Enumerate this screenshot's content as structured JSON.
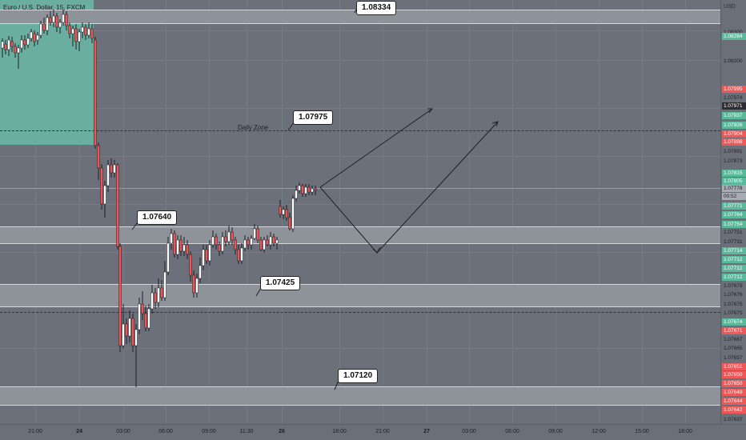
{
  "symbol": {
    "title": "Euro / U.S. Dollar, 15, FXCM"
  },
  "price_axis": {
    "currency": "USD",
    "labels": [
      {
        "text": "1.08300",
        "style": "plain"
      },
      {
        "text": "1.08284",
        "style": "green"
      },
      {
        "text": "1.08200",
        "style": "plain"
      },
      {
        "text": "1.07995",
        "style": "red"
      },
      {
        "text": "1.07974",
        "style": "plain"
      },
      {
        "text": "1.07971",
        "style": "dark"
      },
      {
        "text": "1.07937",
        "style": "green"
      },
      {
        "text": "1.07926",
        "style": "green"
      },
      {
        "text": "1.07904",
        "style": "red"
      },
      {
        "text": "1.07898",
        "style": "red"
      },
      {
        "text": "1.07891",
        "style": "plain"
      },
      {
        "text": "1.07873",
        "style": "plain"
      },
      {
        "text": "1.07815",
        "style": "green"
      },
      {
        "text": "1.07805",
        "style": "green"
      },
      {
        "text": "1.07778",
        "style": "grey"
      },
      {
        "text": "00:52",
        "style": "grey"
      },
      {
        "text": "1.07771",
        "style": "green"
      },
      {
        "text": "1.07764",
        "style": "green"
      },
      {
        "text": "1.07754",
        "style": "green"
      },
      {
        "text": "1.07751",
        "style": "plain"
      },
      {
        "text": "1.07731",
        "style": "plain"
      },
      {
        "text": "1.07714",
        "style": "green"
      },
      {
        "text": "1.07712",
        "style": "green"
      },
      {
        "text": "1.07712",
        "style": "green"
      },
      {
        "text": "1.07712",
        "style": "green"
      },
      {
        "text": "1.07679",
        "style": "plain"
      },
      {
        "text": "1.07676",
        "style": "plain"
      },
      {
        "text": "1.07675",
        "style": "plain"
      },
      {
        "text": "1.07675",
        "style": "plain"
      },
      {
        "text": "1.07674",
        "style": "green"
      },
      {
        "text": "1.07671",
        "style": "red"
      },
      {
        "text": "1.07667",
        "style": "plain"
      },
      {
        "text": "1.07665",
        "style": "plain"
      },
      {
        "text": "1.07657",
        "style": "plain"
      },
      {
        "text": "1.07651",
        "style": "red"
      },
      {
        "text": "1.07650",
        "style": "red"
      },
      {
        "text": "1.07650",
        "style": "red"
      },
      {
        "text": "1.07649",
        "style": "red"
      },
      {
        "text": "1.07644",
        "style": "red"
      },
      {
        "text": "1.07642",
        "style": "red"
      },
      {
        "text": "1.07637",
        "style": "plain"
      }
    ]
  },
  "time_axis": {
    "labels": [
      {
        "text": "21:00",
        "bold": false
      },
      {
        "text": "24",
        "bold": true
      },
      {
        "text": "03:00",
        "bold": false
      },
      {
        "text": "06:00",
        "bold": false
      },
      {
        "text": "09:00",
        "bold": false
      },
      {
        "text": "11:30",
        "bold": false
      },
      {
        "text": "26",
        "bold": true
      },
      {
        "text": "18:00",
        "bold": false
      },
      {
        "text": "21:00",
        "bold": false
      },
      {
        "text": "27",
        "bold": true
      },
      {
        "text": "03:00",
        "bold": false
      },
      {
        "text": "06:00",
        "bold": false
      },
      {
        "text": "09:00",
        "bold": false
      },
      {
        "text": "12:00",
        "bold": false
      },
      {
        "text": "15:00",
        "bold": false
      },
      {
        "text": "18:00",
        "bold": false
      }
    ]
  },
  "annotations": {
    "level_1": "1.08334",
    "level_2": "1.07975",
    "level_3": "1.07640",
    "level_4": "1.07425",
    "level_5": "1.07120",
    "daily_zone": "Daily Zone"
  },
  "colors": {
    "bull": "#ffffff",
    "bear": "#f05454",
    "zone_green": "#6aaea0",
    "band": "#8e9299"
  }
}
